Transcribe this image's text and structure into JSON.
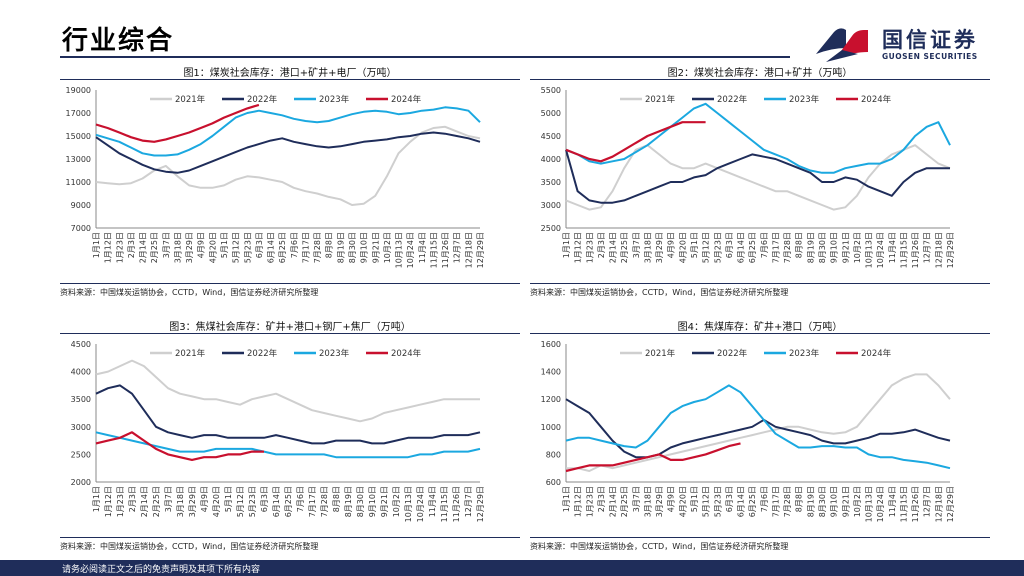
{
  "header": {
    "title": "行业综合"
  },
  "logo": {
    "cn": "国信证券",
    "en": "GUOSEN SECURITIES"
  },
  "footer": {
    "disclaimer": "请务必阅读正文之后的免责声明及其项下所有内容"
  },
  "colors": {
    "y2021": "#cfcfcf",
    "y2022": "#1f2d5a",
    "y2023": "#1ba8e0",
    "y2024": "#c8102e"
  },
  "x_dates": [
    "1月1日",
    "1月12日",
    "1月23日",
    "2月3日",
    "2月14日",
    "2月25日",
    "3月7日",
    "3月18日",
    "3月29日",
    "4月9日",
    "4月20日",
    "5月1日",
    "5月12日",
    "5月23日",
    "6月3日",
    "6月14日",
    "6月25日",
    "7月6日",
    "7月17日",
    "7月28日",
    "8月8日",
    "8月19日",
    "8月30日",
    "9月10日",
    "9月21日",
    "10月2日",
    "10月13日",
    "10月24日",
    "11月4日",
    "11月15日",
    "11月26日",
    "12月7日",
    "12月18日",
    "12月29日"
  ],
  "x_dates_chart3": [
    "1月1日",
    "1月12日",
    "1月23日",
    "2月3日",
    "2月14日",
    "2月25日",
    "3月7日",
    "3月18日",
    "3月29日",
    "4月9日",
    "4月20日",
    "5月1日",
    "5月12日",
    "5月23日",
    "6月3日",
    "6月14日",
    "6月25日",
    "7月6日",
    "7月17日",
    "7月28日",
    "8月8日",
    "8月19日",
    "8月30日",
    "9月10日",
    "9月21日",
    "10月2日",
    "10月13日",
    "10月24日",
    "11月4日",
    "11月15日",
    "11月26日",
    "12月7日",
    "12月29日"
  ],
  "chart_data": [
    {
      "type": "line",
      "title": "图1：煤炭社会库存：港口+矿井+电厂（万吨）",
      "source": "资料来源：中国煤炭运销协会，CCTD，Wind，国信证券经济研究所整理",
      "ylim": [
        7000,
        19000
      ],
      "yticks": [
        7000,
        9000,
        11000,
        13000,
        15000,
        17000,
        19000
      ],
      "series": [
        {
          "name": "2021年",
          "values": [
            11000,
            10900,
            10800,
            10900,
            11300,
            12000,
            12400,
            11500,
            10700,
            10500,
            10500,
            10700,
            11200,
            11500,
            11400,
            11200,
            11000,
            10500,
            10200,
            10000,
            9700,
            9500,
            9000,
            9100,
            9800,
            11500,
            13500,
            14500,
            15300,
            15700,
            15800,
            15400,
            15000,
            14800
          ]
        },
        {
          "name": "2022年",
          "values": [
            14900,
            14200,
            13500,
            13000,
            12500,
            12100,
            11900,
            11800,
            12000,
            12400,
            12800,
            13200,
            13600,
            14000,
            14300,
            14600,
            14800,
            14500,
            14300,
            14100,
            14000,
            14100,
            14300,
            14500,
            14600,
            14700,
            14900,
            15000,
            15200,
            15300,
            15200,
            15000,
            14800,
            14500
          ]
        },
        {
          "name": "2023年",
          "values": [
            15100,
            14800,
            14500,
            14000,
            13500,
            13300,
            13300,
            13400,
            13800,
            14300,
            15000,
            15800,
            16600,
            17000,
            17200,
            17000,
            16800,
            16500,
            16300,
            16200,
            16300,
            16600,
            16900,
            17100,
            17200,
            17100,
            16900,
            17000,
            17200,
            17300,
            17500,
            17400,
            17200,
            16200
          ]
        },
        {
          "name": "2024年",
          "values": [
            16000,
            15700,
            15300,
            14900,
            14600,
            14500,
            14700,
            15000,
            15300,
            15700,
            16100,
            16600,
            17000,
            17400,
            17700,
            null,
            null,
            null,
            null,
            null,
            null,
            null,
            null,
            null,
            null,
            null,
            null,
            null,
            null,
            null,
            null,
            null,
            null,
            null
          ]
        }
      ]
    },
    {
      "type": "line",
      "title": "图2：煤炭社会库存：港口+矿井（万吨）",
      "source": "资料来源：中国煤炭运销协会，CCTD，Wind，国信证券经济研究所整理",
      "ylim": [
        2500,
        5500
      ],
      "yticks": [
        2500,
        3000,
        3500,
        4000,
        4500,
        5000,
        5500
      ],
      "series": [
        {
          "name": "2021年",
          "values": [
            3100,
            3000,
            2900,
            2950,
            3300,
            3800,
            4200,
            4300,
            4100,
            3900,
            3800,
            3800,
            3900,
            3800,
            3700,
            3600,
            3500,
            3400,
            3300,
            3300,
            3200,
            3100,
            3000,
            2900,
            2950,
            3200,
            3600,
            3900,
            4100,
            4200,
            4300,
            4100,
            3900,
            3800
          ]
        },
        {
          "name": "2022年",
          "values": [
            4200,
            3300,
            3100,
            3050,
            3050,
            3100,
            3200,
            3300,
            3400,
            3500,
            3500,
            3600,
            3650,
            3800,
            3900,
            4000,
            4100,
            4050,
            4000,
            3900,
            3800,
            3700,
            3500,
            3500,
            3600,
            3550,
            3400,
            3300,
            3200,
            3500,
            3700,
            3800,
            3800,
            3800
          ]
        },
        {
          "name": "2023年",
          "values": [
            4200,
            4100,
            3950,
            3900,
            3950,
            4000,
            4150,
            4300,
            4500,
            4700,
            4900,
            5100,
            5200,
            5000,
            4800,
            4600,
            4400,
            4200,
            4100,
            4000,
            3850,
            3750,
            3700,
            3700,
            3800,
            3850,
            3900,
            3900,
            4000,
            4200,
            4500,
            4700,
            4800,
            4300
          ]
        },
        {
          "name": "2024年",
          "values": [
            4200,
            4100,
            4000,
            3950,
            4050,
            4200,
            4350,
            4500,
            4600,
            4700,
            4800,
            4800,
            4800,
            null,
            null,
            null,
            null,
            null,
            null,
            null,
            null,
            null,
            null,
            null,
            null,
            null,
            null,
            null,
            null,
            null,
            null,
            null,
            null,
            null
          ]
        }
      ]
    },
    {
      "type": "line",
      "title": "图3：焦煤社会库存：矿井+港口+钢厂+焦厂（万吨）",
      "source": "资料来源：中国煤炭运销协会，CCTD，Wind，国信证券经济研究所整理",
      "ylim": [
        2000,
        4500
      ],
      "yticks": [
        2000,
        2500,
        3000,
        3500,
        4000,
        4500
      ],
      "series": [
        {
          "name": "2021年",
          "values": [
            3950,
            4000,
            4100,
            4200,
            4100,
            3900,
            3700,
            3600,
            3550,
            3500,
            3500,
            3450,
            3400,
            3500,
            3550,
            3600,
            3500,
            3400,
            3300,
            3250,
            3200,
            3150,
            3100,
            3150,
            3250,
            3300,
            3350,
            3400,
            3450,
            3500,
            3500,
            3500,
            3500
          ]
        },
        {
          "name": "2022年",
          "values": [
            3600,
            3700,
            3750,
            3600,
            3300,
            3000,
            2900,
            2850,
            2800,
            2850,
            2850,
            2800,
            2800,
            2800,
            2800,
            2850,
            2800,
            2750,
            2700,
            2700,
            2750,
            2750,
            2750,
            2700,
            2700,
            2750,
            2800,
            2800,
            2800,
            2850,
            2850,
            2850,
            2900
          ]
        },
        {
          "name": "2023年",
          "values": [
            2900,
            2850,
            2800,
            2750,
            2700,
            2650,
            2600,
            2550,
            2550,
            2550,
            2600,
            2600,
            2600,
            2600,
            2550,
            2500,
            2500,
            2500,
            2500,
            2500,
            2450,
            2450,
            2450,
            2450,
            2450,
            2450,
            2450,
            2500,
            2500,
            2550,
            2550,
            2550,
            2600
          ]
        },
        {
          "name": "2024年",
          "values": [
            2700,
            2750,
            2800,
            2900,
            2750,
            2600,
            2500,
            2450,
            2400,
            2450,
            2450,
            2500,
            2500,
            2550,
            2550,
            null,
            null,
            null,
            null,
            null,
            null,
            null,
            null,
            null,
            null,
            null,
            null,
            null,
            null,
            null,
            null,
            null,
            null
          ]
        }
      ]
    },
    {
      "type": "line",
      "title": "图4：焦煤库存：矿井+港口（万吨）",
      "source": "资料来源：中国煤炭运销协会，CCTD，Wind，国信证券经济研究所整理",
      "ylim": [
        600,
        1600
      ],
      "yticks": [
        600,
        800,
        1000,
        1200,
        1400,
        1600
      ],
      "series": [
        {
          "name": "2021年",
          "values": [
            700,
            700,
            680,
            720,
            700,
            720,
            740,
            760,
            780,
            800,
            820,
            840,
            860,
            880,
            900,
            920,
            940,
            960,
            980,
            1000,
            1000,
            980,
            960,
            950,
            960,
            1000,
            1100,
            1200,
            1300,
            1350,
            1380,
            1380,
            1300,
            1200
          ]
        },
        {
          "name": "2022年",
          "values": [
            1200,
            1150,
            1100,
            1000,
            900,
            820,
            780,
            780,
            800,
            850,
            880,
            900,
            920,
            940,
            960,
            980,
            1000,
            1050,
            1000,
            980,
            960,
            940,
            900,
            880,
            880,
            900,
            920,
            950,
            950,
            960,
            980,
            950,
            920,
            900
          ]
        },
        {
          "name": "2023年",
          "values": [
            900,
            920,
            920,
            900,
            880,
            860,
            850,
            900,
            1000,
            1100,
            1150,
            1180,
            1200,
            1250,
            1300,
            1250,
            1150,
            1050,
            950,
            900,
            850,
            850,
            860,
            860,
            850,
            850,
            800,
            780,
            780,
            760,
            750,
            740,
            720,
            700
          ]
        },
        {
          "name": "2024年",
          "values": [
            680,
            700,
            720,
            720,
            720,
            740,
            760,
            780,
            800,
            760,
            760,
            780,
            800,
            830,
            860,
            880,
            null,
            null,
            null,
            null,
            null,
            null,
            null,
            null,
            null,
            null,
            null,
            null,
            null,
            null,
            null,
            null,
            null,
            null
          ]
        }
      ]
    }
  ]
}
